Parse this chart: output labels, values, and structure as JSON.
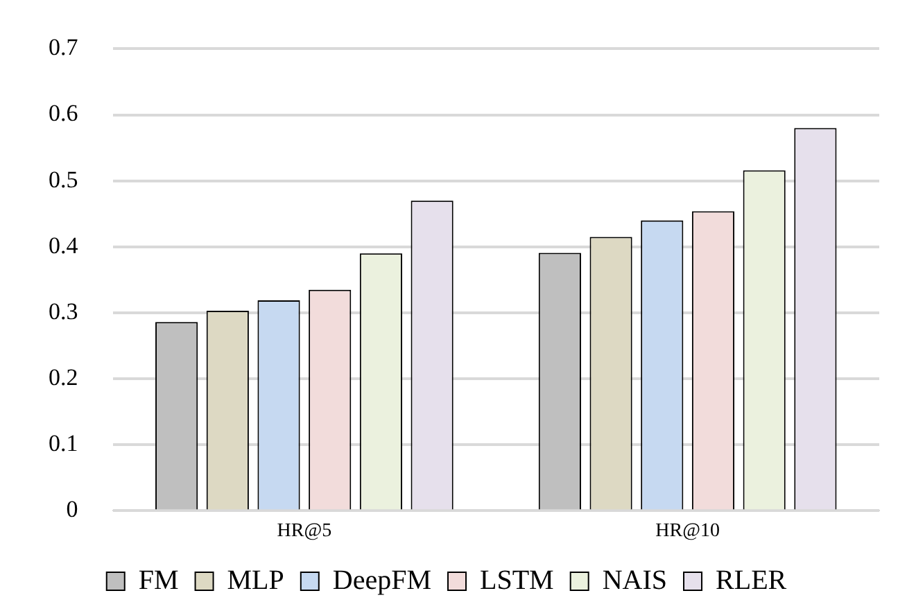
{
  "chart_data": {
    "type": "bar",
    "categories": [
      "HR@5",
      "HR@10"
    ],
    "series": [
      {
        "name": "FM",
        "color": "#bfbfbf",
        "values": [
          0.286,
          0.391
        ]
      },
      {
        "name": "MLP",
        "color": "#ddd9c3",
        "values": [
          0.303,
          0.415
        ]
      },
      {
        "name": "DeepFM",
        "color": "#c6d9f1",
        "values": [
          0.319,
          0.44
        ]
      },
      {
        "name": "LSTM",
        "color": "#f2dcdb",
        "values": [
          0.335,
          0.454
        ]
      },
      {
        "name": "NAIS",
        "color": "#ebf1de",
        "values": [
          0.39,
          0.516
        ]
      },
      {
        "name": "RLER",
        "color": "#e6e0ec",
        "values": [
          0.47,
          0.58
        ]
      }
    ],
    "ylim": [
      0,
      0.7
    ],
    "yticks": [
      0,
      0.1,
      0.2,
      0.3,
      0.4,
      0.5,
      0.6,
      0.7
    ],
    "grid": "y",
    "legend": "bottom"
  }
}
